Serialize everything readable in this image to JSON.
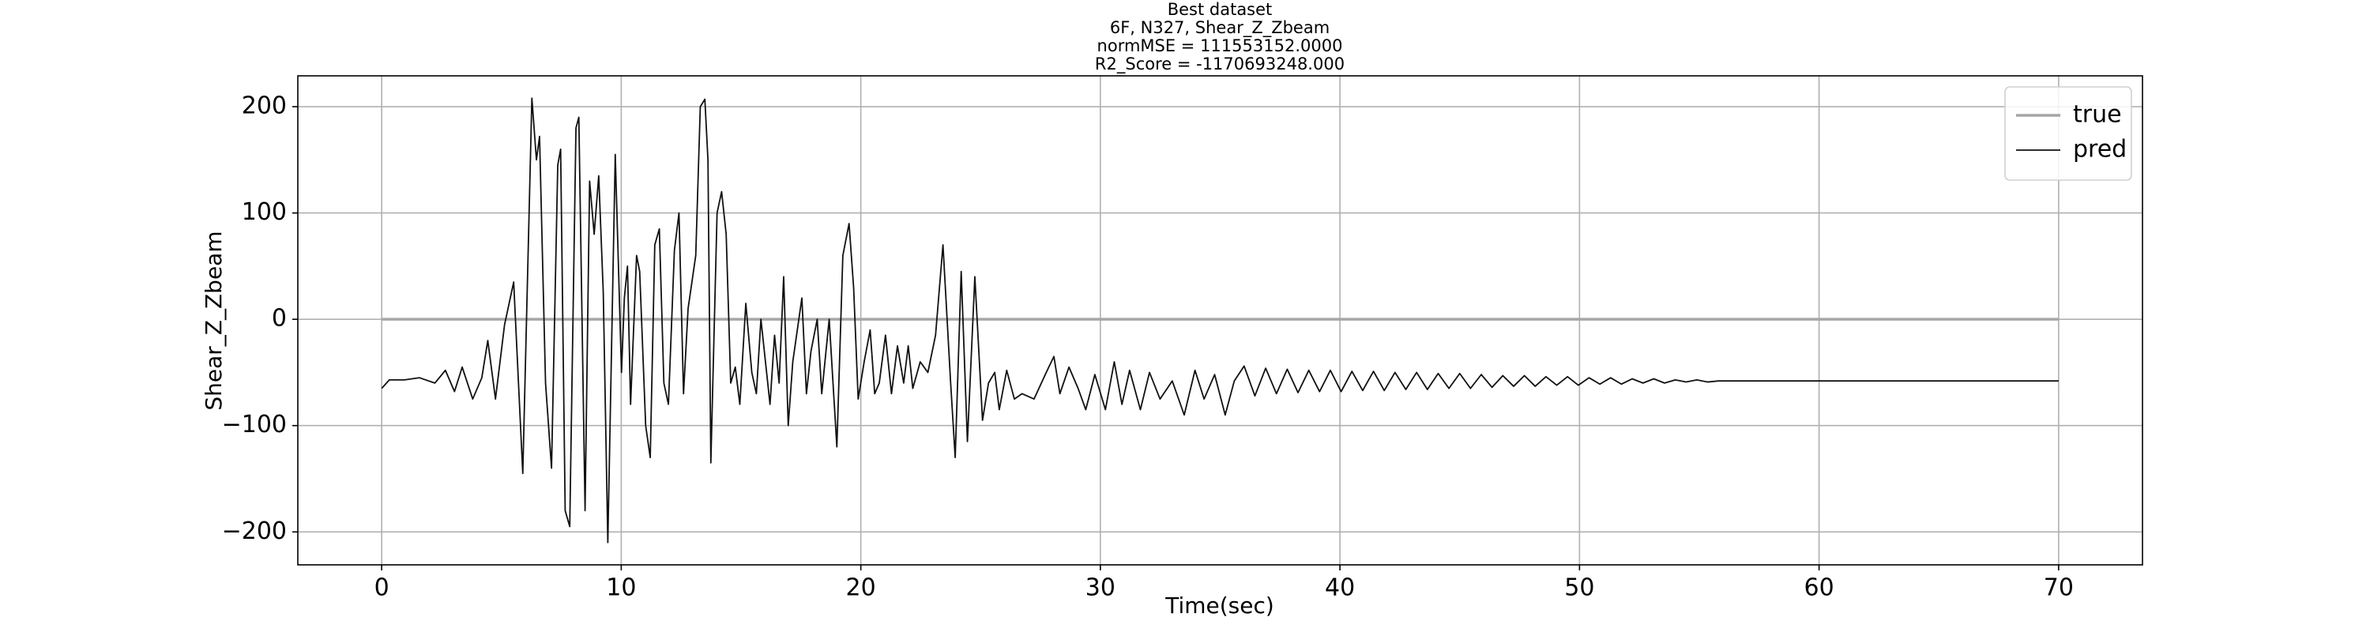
{
  "chart_data": {
    "type": "line",
    "title_lines": [
      "Best dataset",
      "6F, N327, Shear_Z_Zbeam",
      "normMSE = 111553152.0000",
      "R2_Score = -1170693248.000"
    ],
    "xlabel": "Time(sec)",
    "ylabel": "Shear_Z_Zbeam",
    "xlim": [
      -3.5,
      73.5
    ],
    "ylim": [
      -231,
      229
    ],
    "xticks": [
      0,
      10,
      20,
      30,
      40,
      50,
      60,
      70
    ],
    "yticks": [
      {
        "value": -200,
        "label": "−200"
      },
      {
        "value": -100,
        "label": "−100"
      },
      0,
      100,
      200
    ],
    "grid": true,
    "legend": "upper right",
    "series": [
      {
        "name": "true",
        "color": "#a6a6a6",
        "x": [
          0,
          70
        ],
        "values": [
          0,
          0
        ]
      },
      {
        "name": "pred",
        "color": "#111111",
        "x": [
          0,
          0.32,
          0.95,
          1.58,
          2.22,
          2.66,
          3.04,
          3.36,
          3.8,
          4.18,
          4.43,
          4.75,
          5.13,
          5.51,
          5.89,
          6.27,
          6.46,
          6.59,
          6.84,
          7.09,
          7.35,
          7.47,
          7.66,
          7.85,
          8.11,
          8.23,
          8.49,
          8.68,
          8.87,
          9.06,
          9.25,
          9.44,
          9.75,
          10.01,
          10.13,
          10.26,
          10.39,
          10.64,
          10.77,
          11.02,
          11.21,
          11.4,
          11.59,
          11.78,
          11.97,
          12.22,
          12.41,
          12.6,
          12.79,
          13.11,
          13.3,
          13.49,
          13.62,
          13.74,
          14.0,
          14.19,
          14.38,
          14.57,
          14.76,
          14.95,
          15.2,
          15.45,
          15.64,
          15.83,
          16.02,
          16.21,
          16.4,
          16.59,
          16.78,
          16.97,
          17.16,
          17.54,
          17.73,
          17.92,
          18.18,
          18.37,
          18.68,
          19.0,
          19.25,
          19.51,
          19.7,
          19.89,
          20.14,
          20.39,
          20.58,
          20.77,
          21.03,
          21.28,
          21.53,
          21.79,
          21.98,
          22.17,
          22.48,
          22.8,
          23.12,
          23.43,
          23.75,
          23.94,
          24.19,
          24.45,
          24.76,
          25.08,
          25.33,
          25.59,
          25.78,
          26.09,
          26.41,
          26.73,
          27.23,
          27.74,
          28.06,
          28.31,
          28.69,
          29.07,
          29.39,
          29.77,
          30.21,
          30.58,
          30.9,
          31.22,
          31.67,
          32.05,
          32.49,
          33.0,
          33.5,
          33.95,
          34.33,
          34.77,
          35.21,
          35.59,
          36.0,
          36.45,
          36.9,
          37.35,
          37.8,
          38.25,
          38.7,
          39.15,
          39.6,
          40.05,
          40.5,
          40.95,
          41.4,
          41.85,
          42.3,
          42.75,
          43.2,
          43.65,
          44.1,
          44.55,
          45.0,
          45.45,
          45.9,
          46.35,
          46.8,
          47.25,
          47.7,
          48.15,
          48.6,
          49.05,
          49.5,
          49.95,
          50.4,
          50.85,
          51.3,
          51.75,
          52.2,
          52.65,
          53.1,
          53.55,
          54.0,
          54.45,
          54.9,
          55.35,
          55.8,
          60,
          70
        ],
        "values": [
          -65,
          -57,
          -57,
          -55,
          -60,
          -48,
          -68,
          -45,
          -75,
          -55,
          -20,
          -75,
          -5,
          35,
          -145,
          208,
          150,
          172,
          -60,
          -140,
          145,
          160,
          -180,
          -195,
          180,
          190,
          -180,
          130,
          80,
          135,
          25,
          -210,
          155,
          -50,
          20,
          50,
          -80,
          60,
          45,
          -100,
          -130,
          70,
          85,
          -60,
          -80,
          65,
          100,
          -70,
          10,
          60,
          200,
          207,
          150,
          -135,
          100,
          120,
          80,
          -60,
          -45,
          -80,
          15,
          -50,
          -70,
          0,
          -40,
          -80,
          -15,
          -60,
          40,
          -100,
          -40,
          20,
          -70,
          -30,
          0,
          -70,
          0,
          -120,
          60,
          90,
          30,
          -75,
          -40,
          -10,
          -70,
          -60,
          -15,
          -70,
          -25,
          -60,
          -25,
          -65,
          -40,
          -50,
          -15,
          70,
          -60,
          -130,
          45,
          -115,
          40,
          -95,
          -60,
          -50,
          -85,
          -48,
          -75,
          -70,
          -75,
          -50,
          -35,
          -70,
          -45,
          -65,
          -85,
          -52,
          -85,
          -40,
          -80,
          -48,
          -85,
          -50,
          -75,
          -58,
          -90,
          -48,
          -75,
          -52,
          -90,
          -58,
          -44,
          -72,
          -46,
          -70,
          -47,
          -69,
          -48,
          -68,
          -48,
          -68,
          -49,
          -67,
          -49,
          -67,
          -50,
          -66,
          -50,
          -66,
          -51,
          -65,
          -51,
          -65,
          -52,
          -64,
          -53,
          -63,
          -53,
          -63,
          -54,
          -62,
          -54,
          -62,
          -55,
          -61,
          -55,
          -61,
          -56,
          -60,
          -56,
          -60,
          -57,
          -59,
          -57,
          -59,
          -58,
          -58,
          -58
        ]
      }
    ]
  }
}
